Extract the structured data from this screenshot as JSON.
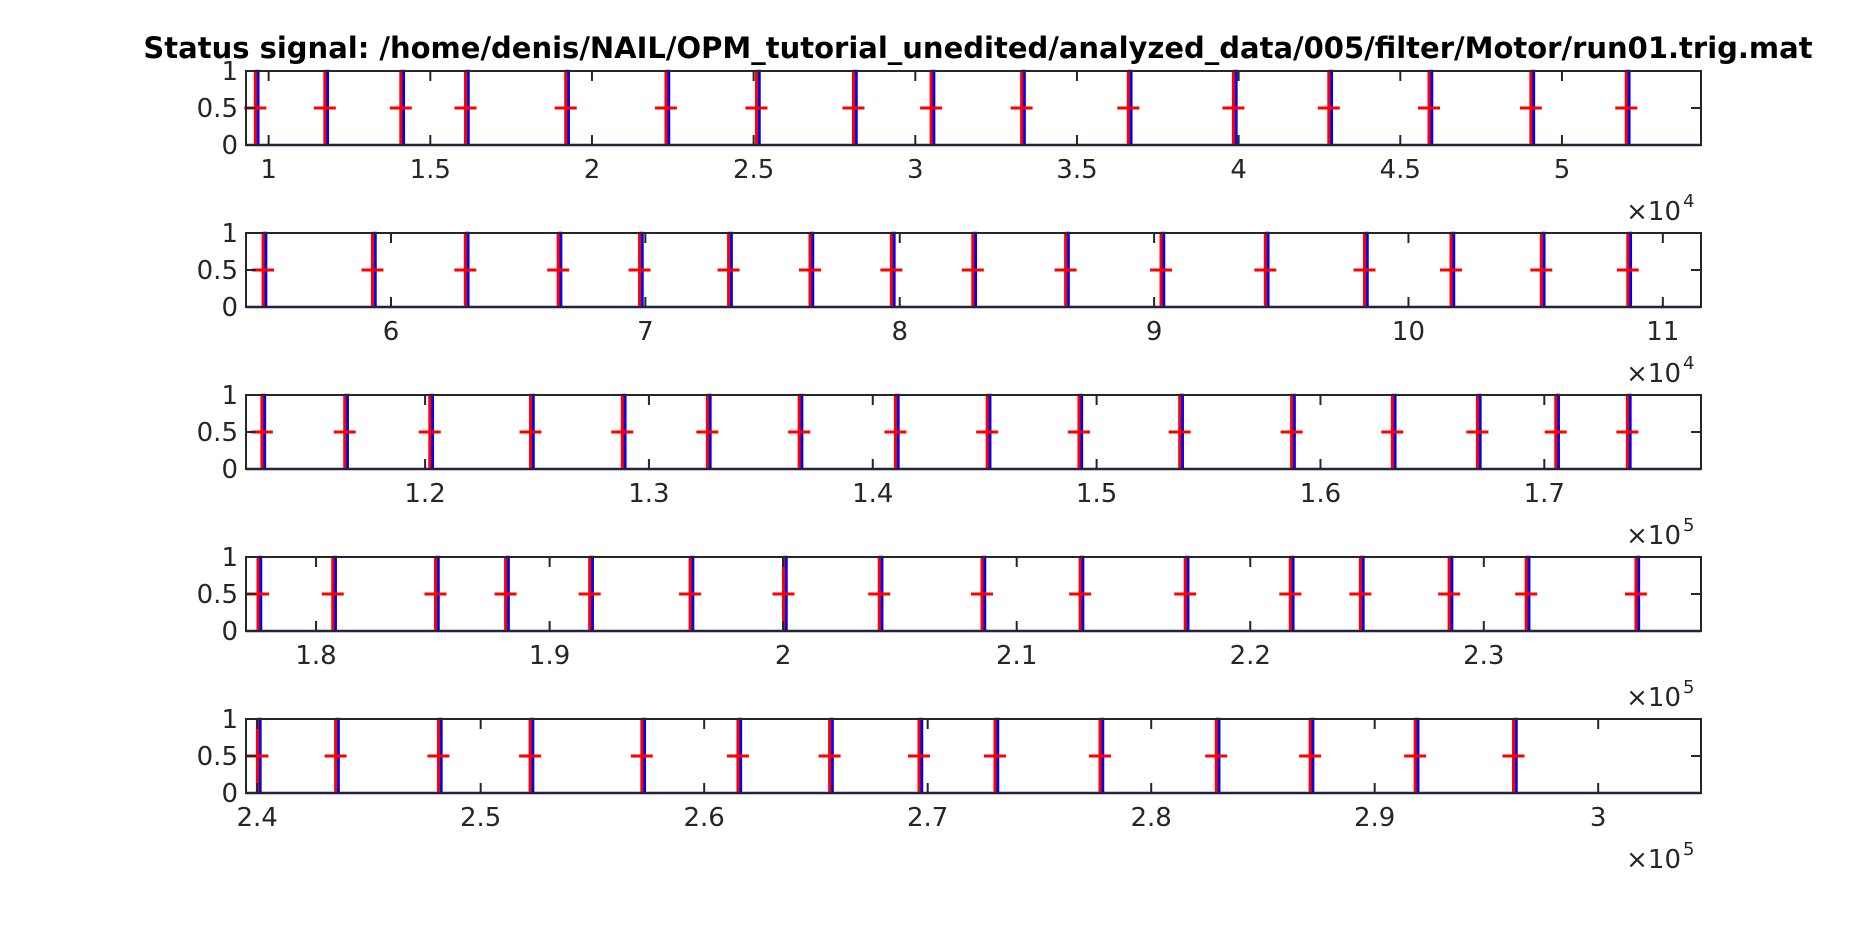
{
  "figure": {
    "title": "Status signal: /home/denis/NAIL/OPM_tutorial_unedited/analyzed_data/005/filter/Motor/run01.trig.mat",
    "signal_color": "#0000ee",
    "marker_color": "#ff0000",
    "axes_color": "#262626"
  },
  "chart_data": [
    {
      "type": "line",
      "xlim": [
        9300,
        54300
      ],
      "ylim": [
        0,
        1
      ],
      "yticks": [
        0,
        0.5,
        1
      ],
      "ytick_labels": [
        "0",
        "0.5",
        "1"
      ],
      "xticks": [
        10000,
        15000,
        20000,
        25000,
        30000,
        35000,
        40000,
        45000,
        50000
      ],
      "xtick_labels": [
        "1",
        "1.5",
        "2",
        "2.5",
        "3",
        "3.5",
        "4",
        "4.5",
        "5"
      ],
      "exponent_base": "×10",
      "exponent_power": "4",
      "pulses": [
        9650,
        11800,
        14150,
        16150,
        19250,
        22350,
        25150,
        28150,
        30550,
        33350,
        36650,
        39900,
        42850,
        45950,
        49100,
        52050
      ],
      "markers": [
        9650,
        11800,
        14150,
        16150,
        19250,
        22350,
        25150,
        28150,
        30550,
        33350,
        36650,
        39900,
        42850,
        45950,
        49100,
        52050
      ]
    },
    {
      "type": "line",
      "xlim": [
        54300,
        111500
      ],
      "ylim": [
        0,
        1
      ],
      "yticks": [
        0,
        0.5,
        1
      ],
      "ytick_labels": [
        "0",
        "0.5",
        "1"
      ],
      "xticks": [
        60000,
        70000,
        80000,
        90000,
        100000,
        110000
      ],
      "xtick_labels": [
        "6",
        "7",
        "8",
        "9",
        "10",
        "11"
      ],
      "exponent_base": "×10",
      "exponent_power": "4",
      "pulses": [
        55050,
        59350,
        63000,
        66650,
        69850,
        73350,
        76550,
        79750,
        82950,
        86600,
        90350,
        94450,
        98350,
        101750,
        105300,
        108700
      ],
      "markers": [
        55050,
        59350,
        63000,
        66650,
        69850,
        73350,
        76550,
        79750,
        82950,
        86600,
        90350,
        94450,
        98350,
        101750,
        105300,
        108700
      ]
    },
    {
      "type": "line",
      "xlim": [
        112000,
        177000
      ],
      "ylim": [
        0,
        1
      ],
      "yticks": [
        0,
        0.5,
        1
      ],
      "ytick_labels": [
        "0",
        "0.5",
        "1"
      ],
      "xticks": [
        120000,
        130000,
        140000,
        150000,
        160000,
        170000
      ],
      "xtick_labels": [
        "1.2",
        "1.3",
        "1.4",
        "1.5",
        "1.6",
        "1.7"
      ],
      "exponent_base": "×10",
      "exponent_power": "5",
      "pulses": [
        112800,
        116500,
        120300,
        124800,
        128900,
        132700,
        136800,
        141100,
        145200,
        149300,
        153800,
        158800,
        163300,
        167100,
        170600,
        173800
      ],
      "markers": [
        112800,
        116500,
        120300,
        124800,
        128900,
        132700,
        136800,
        141100,
        145200,
        149300,
        153800,
        158800,
        163300,
        167100,
        170600,
        173800
      ]
    },
    {
      "type": "line",
      "xlim": [
        177000,
        239300
      ],
      "ylim": [
        0,
        1
      ],
      "yticks": [
        0,
        0.5,
        1
      ],
      "ytick_labels": [
        "0",
        "0.5",
        "1"
      ],
      "xticks": [
        180000,
        190000,
        200000,
        210000,
        220000,
        230000
      ],
      "xtick_labels": [
        "1.8",
        "1.9",
        "2",
        "2.1",
        "2.2",
        "2.3"
      ],
      "exponent_base": "×10",
      "exponent_power": "5",
      "pulses": [
        177600,
        180800,
        185200,
        188200,
        191800,
        196100,
        200100,
        204200,
        208600,
        212800,
        217300,
        221800,
        224800,
        228600,
        231900,
        236600
      ],
      "markers": [
        177600,
        180800,
        185200,
        188200,
        191800,
        196100,
        200100,
        204200,
        208600,
        212800,
        217300,
        221800,
        224800,
        228600,
        231900,
        236600
      ]
    },
    {
      "type": "line",
      "xlim": [
        239500,
        304600
      ],
      "ylim": [
        0,
        1
      ],
      "yticks": [
        0,
        0.5,
        1
      ],
      "ytick_labels": [
        "0",
        "0.5",
        "1"
      ],
      "xticks": [
        240000,
        250000,
        260000,
        270000,
        280000,
        290000,
        300000
      ],
      "xtick_labels": [
        "2.4",
        "2.5",
        "2.6",
        "2.7",
        "2.8",
        "2.9",
        "3"
      ],
      "exponent_base": "×10",
      "exponent_power": "5",
      "pulses": [
        240100,
        243600,
        248200,
        252300,
        257300,
        261600,
        265700,
        269700,
        273100,
        277800,
        283000,
        287200,
        291900,
        296300
      ],
      "markers": [
        240100,
        243600,
        248200,
        252300,
        257300,
        261600,
        265700,
        269700,
        273100,
        277800,
        283000,
        287200,
        291900,
        296300
      ]
    }
  ]
}
